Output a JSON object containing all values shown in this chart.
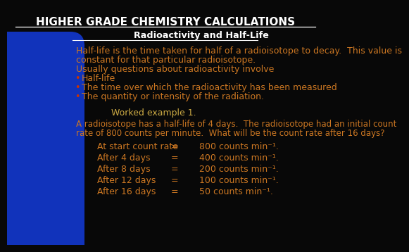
{
  "title": "HIGHER GRADE CHEMISTRY CALCULATIONS",
  "subtitle": "Radioactivity and Half-Life",
  "bg_color": "#080808",
  "blue_left_color": "#1133bb",
  "title_color": "#ffffff",
  "subtitle_color": "#ffffff",
  "body_color": "#cc7722",
  "bullet_dot_color": "#cc3300",
  "worked_color": "#ccaa44",
  "text_lines": [
    "Half-life is the time taken for half of a radioisotope to decay.  This value is",
    "constant for that particular radioisotope.",
    "Usually questions about radioactivity involve"
  ],
  "bullets": [
    "Half-life",
    "The time over which the radioactivity has been measured",
    "The quantity or intensity of the radiation."
  ],
  "worked_label": "Worked example 1.",
  "worked_desc_line1": "A radioisotope has a half-life of 4 days.  The radioisotope had an initial count",
  "worked_desc_line2": "rate of 800 counts per minute.  What will be the count rate after 16 days?",
  "table_rows": [
    [
      "At start count rate",
      "=",
      "800 counts min⁻¹."
    ],
    [
      "After 4 days",
      "=",
      "400 counts min⁻¹."
    ],
    [
      "After 8 days",
      "=",
      "200 counts min⁻¹."
    ],
    [
      "After 12 days",
      "=",
      "100 counts min⁻¹."
    ],
    [
      "After 16 days",
      "=",
      "50 counts min⁻¹."
    ]
  ]
}
